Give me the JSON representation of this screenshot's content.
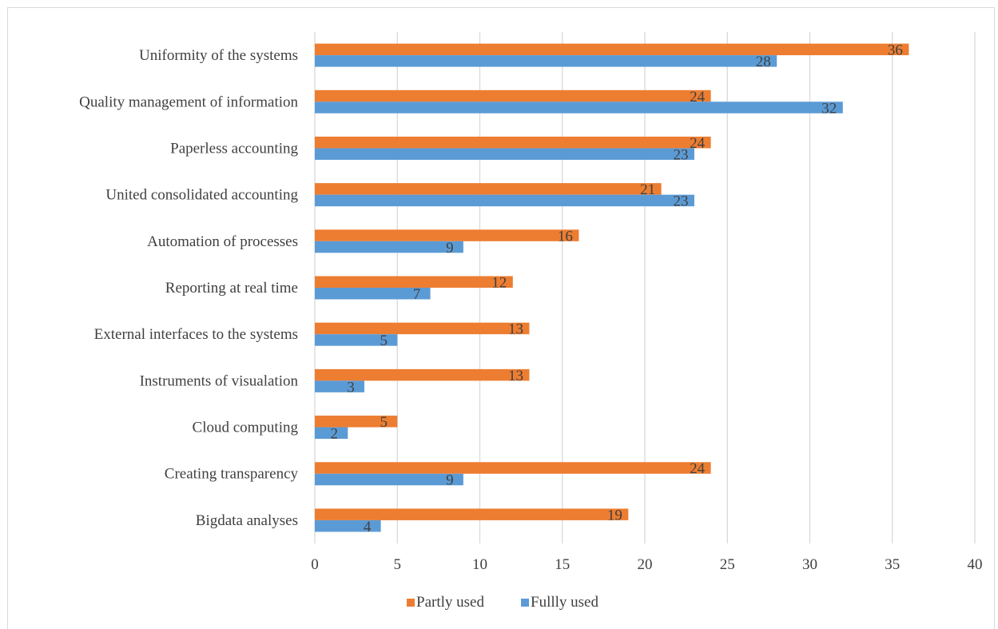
{
  "chart_data": {
    "type": "bar",
    "orientation": "horizontal",
    "title": "",
    "xlabel": "",
    "ylabel": "",
    "xlim": [
      0,
      40
    ],
    "x_ticks": [
      0,
      5,
      10,
      15,
      20,
      25,
      30,
      35,
      40
    ],
    "grid": "vertical",
    "legend_position": "bottom",
    "categories": [
      "Uniformity of the systems",
      "Quality management of information",
      "Paperless accounting",
      "United consolidated accounting",
      "Automation of processes",
      "Reporting at real time",
      "External interfaces to the systems",
      "Instruments of visualation",
      "Cloud computing",
      "Creating  transparency",
      "Bigdata analyses"
    ],
    "series": [
      {
        "name": "Partly used",
        "color": "#ED7D31",
        "values": [
          36,
          24,
          24,
          21,
          16,
          12,
          13,
          13,
          5,
          24,
          19
        ]
      },
      {
        "name": "Fullly used",
        "color": "#5B9BD5",
        "values": [
          28,
          32,
          23,
          23,
          9,
          7,
          5,
          3,
          2,
          9,
          4
        ]
      }
    ],
    "gridline_color": "#d9d9d9"
  }
}
